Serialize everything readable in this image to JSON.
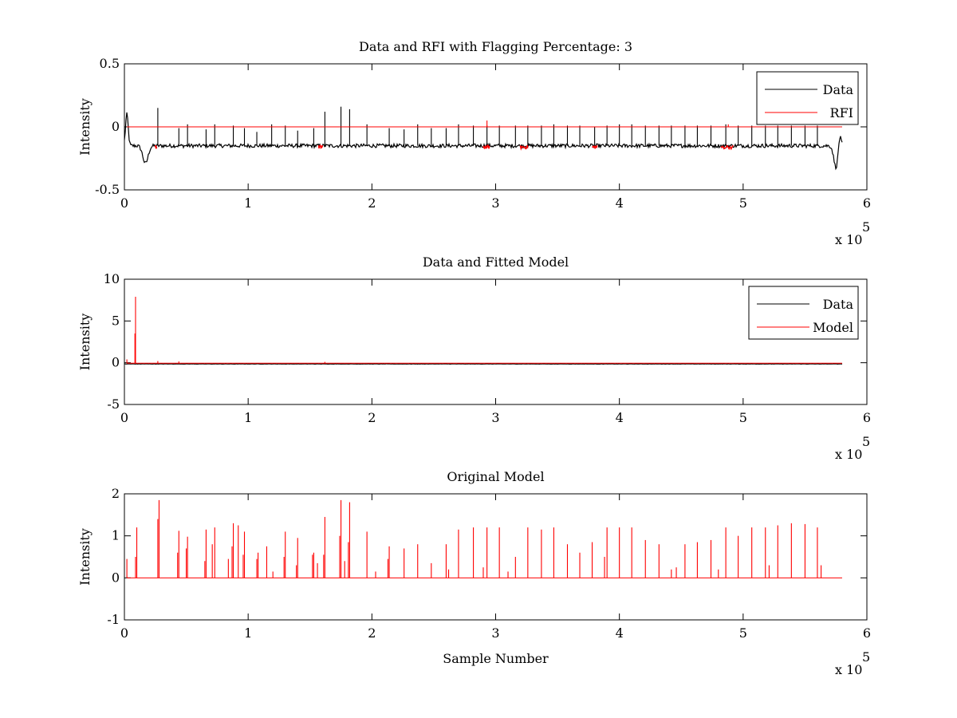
{
  "colors": {
    "data": "#000000",
    "model": "#ff0000",
    "background": "#ffffff",
    "axes": "#000000"
  },
  "chart_data": [
    {
      "type": "line",
      "title": "Data and RFI with Flagging Percentage: 3",
      "xlabel": "",
      "ylabel": "Intensity",
      "xlim": [
        0,
        6
      ],
      "ylim": [
        -0.5,
        0.5
      ],
      "x_ticks": [
        "0",
        "1",
        "2",
        "3",
        "4",
        "5",
        "6"
      ],
      "y_ticks": [
        "-0.5",
        "0",
        "0.5"
      ],
      "x_exponent": {
        "base": "x 10",
        "power": "5"
      },
      "legend": {
        "placement": "top-right",
        "entries": [
          "Data",
          "RFI"
        ]
      },
      "series": [
        {
          "name": "Data",
          "color": "#000000",
          "baseline": -0.15,
          "noise": 0.015,
          "dips": [
            {
              "x": 0.17,
              "y": -0.29,
              "w": 0.03
            },
            {
              "x": 5.75,
              "y": -0.32,
              "w": 0.025
            }
          ],
          "bumps": [
            {
              "x": 0.02,
              "y": 0.1,
              "w": 0.015
            },
            {
              "x": 5.78,
              "y": -0.05,
              "w": 0.015
            }
          ],
          "spikes": [
            [
              0.27,
              0.15
            ],
            [
              0.44,
              -0.01
            ],
            [
              0.51,
              0.02
            ],
            [
              0.66,
              -0.02
            ],
            [
              0.73,
              0.02
            ],
            [
              0.88,
              0.01
            ],
            [
              0.97,
              -0.01
            ],
            [
              1.07,
              -0.04
            ],
            [
              1.19,
              0.02
            ],
            [
              1.3,
              0.01
            ],
            [
              1.4,
              -0.03
            ],
            [
              1.53,
              -0.01
            ],
            [
              1.62,
              0.12
            ],
            [
              1.75,
              0.16
            ],
            [
              1.82,
              0.14
            ],
            [
              1.96,
              0.02
            ],
            [
              2.14,
              -0.01
            ],
            [
              2.26,
              -0.02
            ],
            [
              2.37,
              0.02
            ],
            [
              2.48,
              -0.01
            ],
            [
              2.6,
              -0.01
            ],
            [
              2.7,
              0.02
            ],
            [
              2.82,
              0.01
            ],
            [
              2.93,
              0.01
            ],
            [
              3.03,
              0.01
            ],
            [
              3.16,
              0.01
            ],
            [
              3.26,
              0.01
            ],
            [
              3.37,
              0.01
            ],
            [
              3.47,
              0.02
            ],
            [
              3.58,
              0.01
            ],
            [
              3.68,
              0.01
            ],
            [
              3.8,
              0.0
            ],
            [
              3.9,
              0.01
            ],
            [
              4.0,
              0.02
            ],
            [
              4.1,
              0.02
            ],
            [
              4.21,
              0.01
            ],
            [
              4.32,
              0.01
            ],
            [
              4.42,
              0.01
            ],
            [
              4.53,
              0.01
            ],
            [
              4.63,
              0.01
            ],
            [
              4.74,
              0.01
            ],
            [
              4.86,
              0.02
            ],
            [
              4.96,
              0.01
            ],
            [
              5.07,
              0.01
            ],
            [
              5.18,
              0.01
            ],
            [
              5.28,
              0.01
            ],
            [
              5.39,
              0.01
            ],
            [
              5.5,
              0.01
            ],
            [
              5.6,
              0.01
            ]
          ]
        },
        {
          "name": "RFI",
          "color": "#ff0000",
          "regions": [
            [
              0.25,
              0.26
            ],
            [
              1.57,
              1.6
            ],
            [
              2.9,
              2.95
            ],
            [
              3.2,
              3.26
            ],
            [
              3.78,
              3.82
            ],
            [
              4.82,
              4.92
            ]
          ],
          "spikes": [
            [
              2.93,
              0.05
            ],
            [
              4.88,
              0.02
            ]
          ]
        }
      ]
    },
    {
      "type": "line",
      "title": "Data and Fitted Model",
      "xlabel": "",
      "ylabel": "Intensity",
      "xlim": [
        0,
        6
      ],
      "ylim": [
        -5,
        10
      ],
      "x_ticks": [
        "0",
        "1",
        "2",
        "3",
        "4",
        "5",
        "6"
      ],
      "y_ticks": [
        "-5",
        "0",
        "5",
        "10"
      ],
      "x_exponent": {
        "base": "x 10",
        "power": "5"
      },
      "legend": {
        "placement": "top-right",
        "entries": [
          "Data",
          "Model"
        ]
      },
      "series": [
        {
          "name": "Data",
          "color": "#000000",
          "baseline": -0.15,
          "noise": 0.02
        },
        {
          "name": "Model",
          "color": "#ff0000",
          "baseline": -0.05,
          "spikes": [
            [
              0.09,
              7.9
            ],
            [
              0.085,
              3.5
            ],
            [
              0.02,
              0.4
            ],
            [
              0.27,
              0.2
            ],
            [
              0.44,
              0.15
            ],
            [
              1.62,
              0.1
            ]
          ]
        }
      ]
    },
    {
      "type": "line",
      "title": "Original Model",
      "xlabel": "Sample Number",
      "ylabel": "Intensity",
      "xlim": [
        0,
        6
      ],
      "ylim": [
        -1,
        2
      ],
      "x_ticks": [
        "0",
        "1",
        "2",
        "3",
        "4",
        "5",
        "6"
      ],
      "y_ticks": [
        "-1",
        "0",
        "1",
        "2"
      ],
      "x_exponent": {
        "base": "x 10",
        "power": "5"
      },
      "series": [
        {
          "name": "Model",
          "color": "#ff0000",
          "baseline": 0.0,
          "spikes": [
            [
              0.02,
              0.45
            ],
            [
              0.1,
              1.2
            ],
            [
              0.09,
              0.5
            ],
            [
              0.28,
              1.85
            ],
            [
              0.27,
              1.4
            ],
            [
              0.44,
              1.12
            ],
            [
              0.43,
              0.6
            ],
            [
              0.51,
              0.98
            ],
            [
              0.5,
              0.7
            ],
            [
              0.66,
              1.15
            ],
            [
              0.65,
              0.4
            ],
            [
              0.73,
              1.2
            ],
            [
              0.71,
              0.8
            ],
            [
              0.84,
              0.45
            ],
            [
              0.88,
              1.3
            ],
            [
              0.87,
              0.75
            ],
            [
              0.92,
              1.25
            ],
            [
              0.97,
              1.1
            ],
            [
              0.96,
              0.55
            ],
            [
              1.08,
              0.6
            ],
            [
              1.07,
              0.45
            ],
            [
              1.15,
              0.75
            ],
            [
              1.2,
              0.15
            ],
            [
              1.3,
              1.1
            ],
            [
              1.29,
              0.5
            ],
            [
              1.4,
              0.95
            ],
            [
              1.39,
              0.3
            ],
            [
              1.53,
              0.6
            ],
            [
              1.52,
              0.55
            ],
            [
              1.56,
              0.35
            ],
            [
              1.62,
              1.45
            ],
            [
              1.61,
              0.55
            ],
            [
              1.75,
              1.85
            ],
            [
              1.74,
              1.0
            ],
            [
              1.78,
              0.4
            ],
            [
              1.82,
              1.8
            ],
            [
              1.81,
              0.85
            ],
            [
              1.96,
              1.1
            ],
            [
              2.03,
              0.15
            ],
            [
              2.14,
              0.75
            ],
            [
              2.13,
              0.45
            ],
            [
              2.26,
              0.7
            ],
            [
              2.37,
              0.8
            ],
            [
              2.48,
              0.35
            ],
            [
              2.6,
              0.8
            ],
            [
              2.62,
              0.2
            ],
            [
              2.7,
              1.15
            ],
            [
              2.82,
              1.2
            ],
            [
              2.93,
              1.2
            ],
            [
              2.9,
              0.25
            ],
            [
              3.03,
              1.2
            ],
            [
              3.1,
              0.15
            ],
            [
              3.16,
              0.5
            ],
            [
              3.26,
              1.2
            ],
            [
              3.37,
              1.15
            ],
            [
              3.47,
              1.2
            ],
            [
              3.58,
              0.8
            ],
            [
              3.68,
              0.6
            ],
            [
              3.78,
              0.85
            ],
            [
              3.9,
              1.2
            ],
            [
              3.88,
              0.5
            ],
            [
              4.0,
              1.2
            ],
            [
              4.1,
              1.2
            ],
            [
              4.21,
              0.9
            ],
            [
              4.32,
              0.8
            ],
            [
              4.42,
              0.2
            ],
            [
              4.46,
              0.25
            ],
            [
              4.53,
              0.8
            ],
            [
              4.63,
              0.85
            ],
            [
              4.74,
              0.9
            ],
            [
              4.8,
              0.2
            ],
            [
              4.86,
              1.2
            ],
            [
              4.96,
              1.0
            ],
            [
              5.07,
              1.2
            ],
            [
              5.18,
              1.2
            ],
            [
              5.21,
              0.3
            ],
            [
              5.28,
              1.25
            ],
            [
              5.39,
              1.3
            ],
            [
              5.5,
              1.28
            ],
            [
              5.6,
              1.2
            ],
            [
              5.63,
              0.3
            ]
          ]
        }
      ]
    }
  ]
}
